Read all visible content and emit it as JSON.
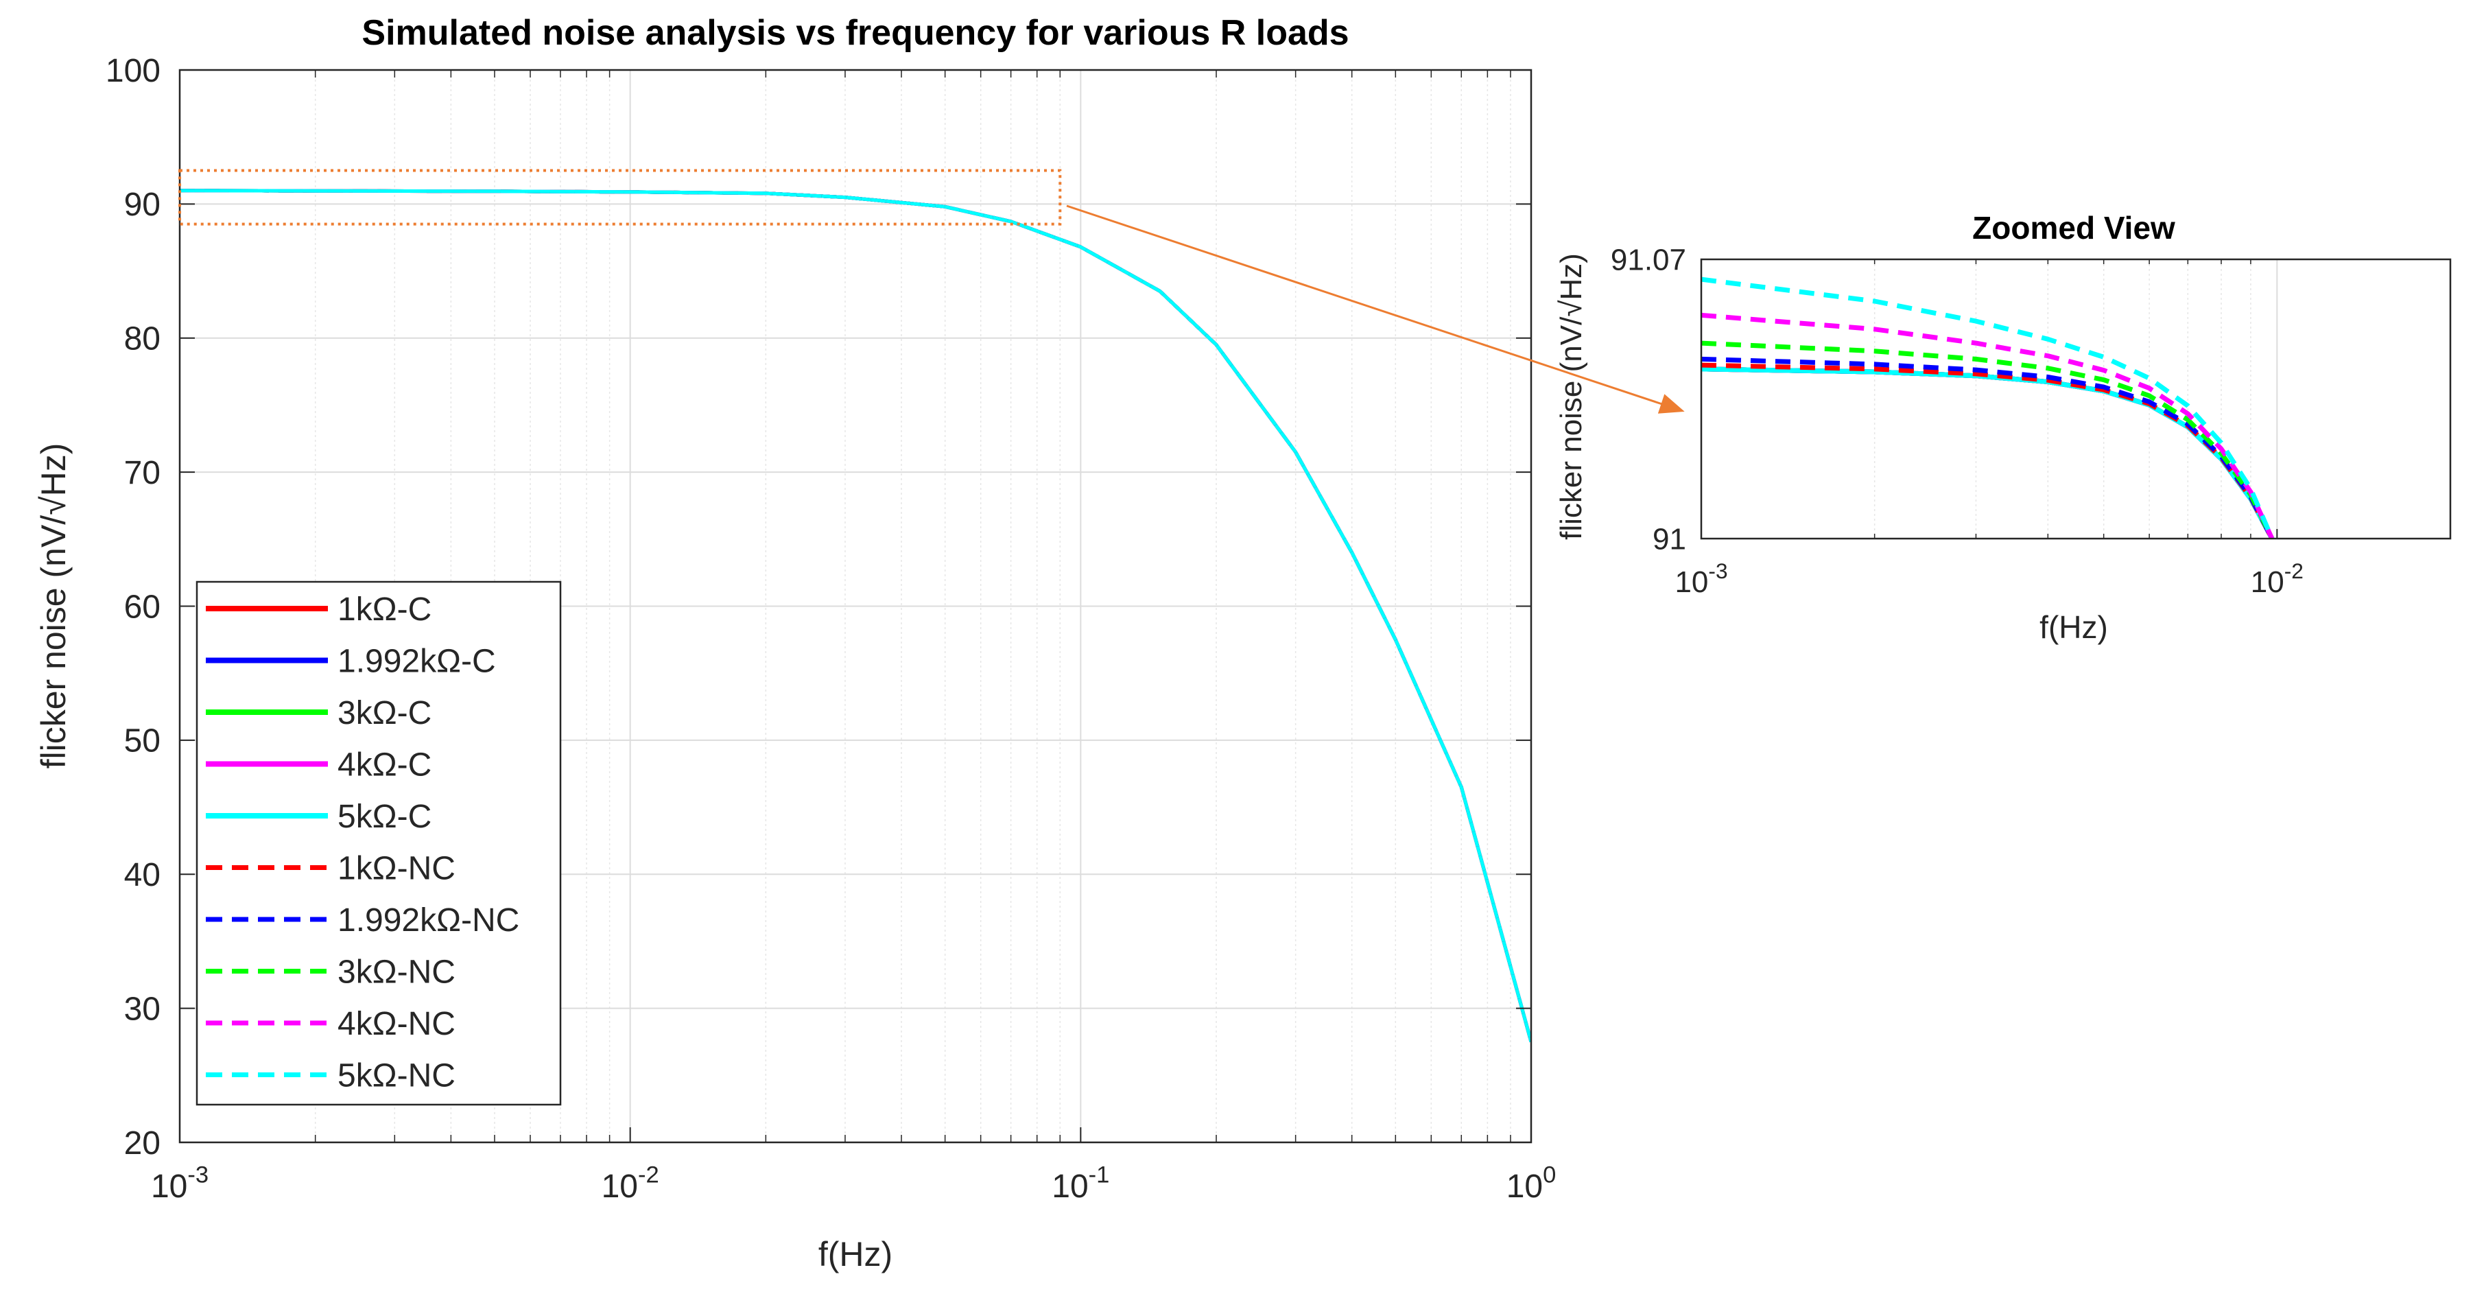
{
  "chart_data": [
    {
      "id": "main",
      "type": "line",
      "title": "Simulated noise analysis vs frequency for various R loads",
      "xlabel": "f(Hz)",
      "ylabel": "flicker noise (nV/√Hz)",
      "xscale": "log",
      "xlim": [
        0.001,
        1
      ],
      "ylim": [
        20,
        100
      ],
      "grid": true,
      "xticks": [
        0.001,
        0.01,
        0.1,
        1
      ],
      "xtick_labels": [
        {
          "base": "10",
          "exp": "-3"
        },
        {
          "base": "10",
          "exp": "-2"
        },
        {
          "base": "10",
          "exp": "-1"
        },
        {
          "base": "10",
          "exp": "0"
        }
      ],
      "yticks": [
        20,
        30,
        40,
        50,
        60,
        70,
        80,
        90,
        100
      ],
      "ytick_labels": [
        "20",
        "30",
        "40",
        "50",
        "60",
        "70",
        "80",
        "90",
        "100"
      ],
      "legend_location": "bottom-left",
      "x": [
        0.001,
        0.002,
        0.005,
        0.01,
        0.02,
        0.03,
        0.05,
        0.07,
        0.1,
        0.15,
        0.2,
        0.3,
        0.4,
        0.5,
        0.7,
        1.0
      ],
      "series": [
        {
          "name": "1kΩ-C",
          "color": "#ff0000",
          "style": "solid",
          "values": [
            91.0,
            90.98,
            90.95,
            90.9,
            90.8,
            90.5,
            89.8,
            88.7,
            86.8,
            83.5,
            79.5,
            71.5,
            64.0,
            57.5,
            46.5,
            27.5
          ]
        },
        {
          "name": "1.992kΩ-C",
          "color": "#0000ff",
          "style": "solid",
          "values": [
            91.0,
            90.98,
            90.95,
            90.9,
            90.8,
            90.5,
            89.8,
            88.7,
            86.8,
            83.5,
            79.5,
            71.5,
            64.0,
            57.5,
            46.5,
            27.5
          ]
        },
        {
          "name": "3kΩ-C",
          "color": "#00ff00",
          "style": "solid",
          "values": [
            91.0,
            90.98,
            90.95,
            90.9,
            90.8,
            90.5,
            89.8,
            88.7,
            86.8,
            83.5,
            79.5,
            71.5,
            64.0,
            57.5,
            46.5,
            27.5
          ]
        },
        {
          "name": "4kΩ-C",
          "color": "#ff00ff",
          "style": "solid",
          "values": [
            91.0,
            90.98,
            90.95,
            90.9,
            90.8,
            90.5,
            89.8,
            88.7,
            86.8,
            83.5,
            79.5,
            71.5,
            64.0,
            57.5,
            46.5,
            27.5
          ]
        },
        {
          "name": "5kΩ-C",
          "color": "#00ffff",
          "style": "solid",
          "values": [
            91.0,
            90.98,
            90.95,
            90.9,
            90.8,
            90.5,
            89.8,
            88.7,
            86.8,
            83.5,
            79.5,
            71.5,
            64.0,
            57.5,
            46.5,
            27.5
          ]
        },
        {
          "name": "1kΩ-NC",
          "color": "#ff0000",
          "style": "dashed",
          "values": [
            91.0,
            90.98,
            90.95,
            90.9,
            90.8,
            90.5,
            89.8,
            88.7,
            86.8,
            83.5,
            79.5,
            71.5,
            64.0,
            57.5,
            46.5,
            27.5
          ]
        },
        {
          "name": "1.992kΩ-NC",
          "color": "#0000ff",
          "style": "dashed",
          "values": [
            91.0,
            90.98,
            90.95,
            90.9,
            90.8,
            90.5,
            89.8,
            88.7,
            86.8,
            83.5,
            79.5,
            71.5,
            64.0,
            57.5,
            46.5,
            27.5
          ]
        },
        {
          "name": "3kΩ-NC",
          "color": "#00ff00",
          "style": "dashed",
          "values": [
            91.0,
            90.98,
            90.95,
            90.9,
            90.8,
            90.5,
            89.8,
            88.7,
            86.8,
            83.5,
            79.5,
            71.5,
            64.0,
            57.5,
            46.5,
            27.5
          ]
        },
        {
          "name": "4kΩ-NC",
          "color": "#ff00ff",
          "style": "dashed",
          "values": [
            91.0,
            90.98,
            90.95,
            90.9,
            90.8,
            90.5,
            89.8,
            88.7,
            86.8,
            83.5,
            79.5,
            71.5,
            64.0,
            57.5,
            46.5,
            27.5
          ]
        },
        {
          "name": "5kΩ-NC",
          "color": "#00ffff",
          "style": "dashed",
          "values": [
            91.0,
            90.98,
            90.95,
            90.9,
            90.8,
            90.5,
            89.8,
            88.7,
            86.8,
            83.5,
            79.5,
            71.5,
            64.0,
            57.5,
            46.5,
            27.5
          ]
        }
      ],
      "zoom_region": {
        "x": [
          0.001,
          0.09
        ],
        "y": [
          88.5,
          92.5
        ],
        "color": "#ed7d31"
      }
    },
    {
      "id": "zoom",
      "type": "line",
      "title": "Zoomed View",
      "xlabel": "f(Hz)",
      "ylabel": "flicker noise (nV/√Hz)",
      "xscale": "log",
      "xlim": [
        0.001,
        0.02
      ],
      "ylim": [
        91,
        91.07
      ],
      "grid": true,
      "xticks": [
        0.001,
        0.01
      ],
      "xtick_labels": [
        {
          "base": "10",
          "exp": "-3"
        },
        {
          "base": "10",
          "exp": "-2"
        }
      ],
      "yticks": [
        91,
        91.07
      ],
      "ytick_labels": [
        "91",
        "91.07"
      ],
      "x": [
        0.001,
        0.002,
        0.003,
        0.004,
        0.005,
        0.006,
        0.007,
        0.008,
        0.009,
        0.0098
      ],
      "series": [
        {
          "name": "1kΩ-C",
          "color": "#ff0000",
          "style": "solid",
          "values": [
            91.0425,
            91.0418,
            91.0408,
            91.0393,
            91.037,
            91.0335,
            91.028,
            91.02,
            91.01,
            91.0
          ]
        },
        {
          "name": "1.992kΩ-C",
          "color": "#0000ff",
          "style": "solid",
          "values": [
            91.0425,
            91.0418,
            91.0408,
            91.0393,
            91.037,
            91.0335,
            91.028,
            91.02,
            91.01,
            91.0
          ]
        },
        {
          "name": "3kΩ-C",
          "color": "#00ff00",
          "style": "solid",
          "values": [
            91.0425,
            91.0418,
            91.0408,
            91.0393,
            91.037,
            91.0335,
            91.028,
            91.02,
            91.01,
            91.0
          ]
        },
        {
          "name": "4kΩ-C",
          "color": "#ff00ff",
          "style": "solid",
          "values": [
            91.0425,
            91.0418,
            91.0408,
            91.0393,
            91.037,
            91.0335,
            91.028,
            91.02,
            91.01,
            91.0
          ]
        },
        {
          "name": "5kΩ-C",
          "color": "#00ffff",
          "style": "solid",
          "values": [
            91.0425,
            91.0418,
            91.0408,
            91.0393,
            91.037,
            91.0335,
            91.028,
            91.02,
            91.01,
            91.0
          ]
        },
        {
          "name": "1kΩ-NC",
          "color": "#ff0000",
          "style": "dashed",
          "values": [
            91.0435,
            91.0425,
            91.0413,
            91.0397,
            91.0373,
            91.0338,
            91.0283,
            91.0203,
            91.0103,
            91.0
          ]
        },
        {
          "name": "1.992kΩ-NC",
          "color": "#0000ff",
          "style": "dashed",
          "values": [
            91.045,
            91.0437,
            91.0423,
            91.0405,
            91.038,
            91.0343,
            91.0287,
            91.0206,
            91.0105,
            91.0
          ]
        },
        {
          "name": "3kΩ-NC",
          "color": "#00ff00",
          "style": "dashed",
          "values": [
            91.049,
            91.047,
            91.045,
            91.0427,
            91.0398,
            91.0358,
            91.0298,
            91.0214,
            91.011,
            91.0
          ]
        },
        {
          "name": "4kΩ-NC",
          "color": "#ff00ff",
          "style": "dashed",
          "values": [
            91.056,
            91.0525,
            91.049,
            91.0458,
            91.0422,
            91.0377,
            91.0313,
            91.0225,
            91.0117,
            91.0
          ]
        },
        {
          "name": "5kΩ-NC",
          "color": "#00ffff",
          "style": "dashed",
          "values": [
            91.065,
            91.0595,
            91.0545,
            91.05,
            91.0455,
            91.0402,
            91.0333,
            91.024,
            91.0125,
            91.0
          ]
        }
      ]
    }
  ]
}
